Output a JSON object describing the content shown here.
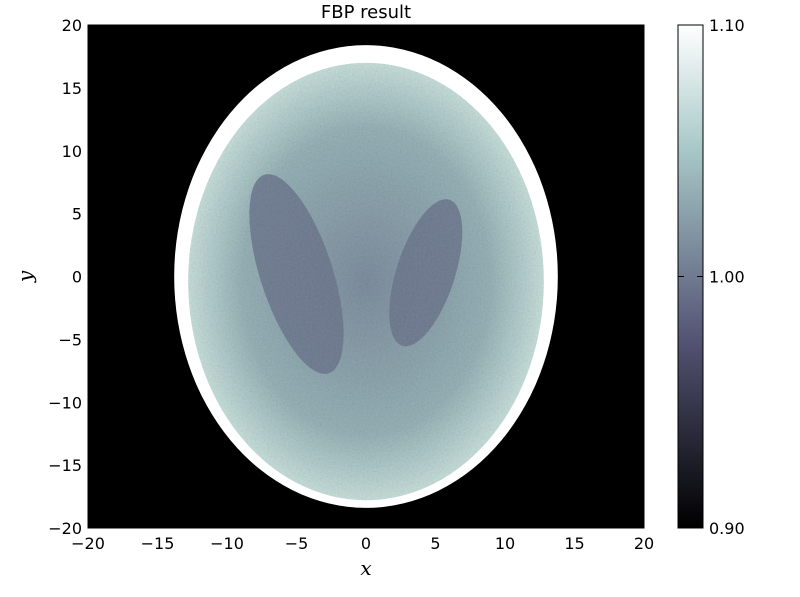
{
  "chart_data": {
    "type": "heatmap",
    "title": "FBP result",
    "xlabel": "x",
    "ylabel": "y",
    "xlim": [
      -20,
      20
    ],
    "ylim": [
      -20,
      20
    ],
    "x_ticks": [
      -20,
      -15,
      -10,
      -5,
      0,
      5,
      10,
      15,
      20
    ],
    "y_ticks": [
      -20,
      -15,
      -10,
      -5,
      0,
      5,
      10,
      15,
      20
    ],
    "x_tick_labels": [
      "−20",
      "−15",
      "−10",
      "−5",
      "0",
      "5",
      "10",
      "15",
      "20"
    ],
    "y_tick_labels": [
      "−20",
      "−15",
      "−10",
      "−5",
      "0",
      "5",
      "10",
      "15",
      "20"
    ],
    "colormap": "bone",
    "colorbar": {
      "vmin": 0.9,
      "vmax": 1.1,
      "ticks": [
        0.9,
        1.0,
        1.1
      ],
      "tick_labels": [
        "0.90",
        "1.00",
        "1.10"
      ]
    },
    "background_value": 0.9,
    "image": {
      "shape": "phantom",
      "outer_ellipse": {
        "center": [
          0,
          0
        ],
        "semi_x": 13.8,
        "semi_y": 18.4,
        "value": "saturated (>1.10)"
      },
      "inner_ellipse": {
        "center": [
          0,
          -0.4
        ],
        "semi_x": 12.8,
        "semi_y": 17.4,
        "value": 1.06
      },
      "left_ellipse": {
        "center": [
          -5.0,
          0.2
        ],
        "semi_x": 2.6,
        "semi_y": 8.3,
        "tilt_deg": 18,
        "value": 1.0
      },
      "right_ellipse": {
        "center": [
          4.3,
          0.3
        ],
        "semi_x": 2.1,
        "semi_y": 6.1,
        "tilt_deg": -18,
        "value": 1.0
      }
    },
    "grid": false,
    "legend": "none"
  }
}
